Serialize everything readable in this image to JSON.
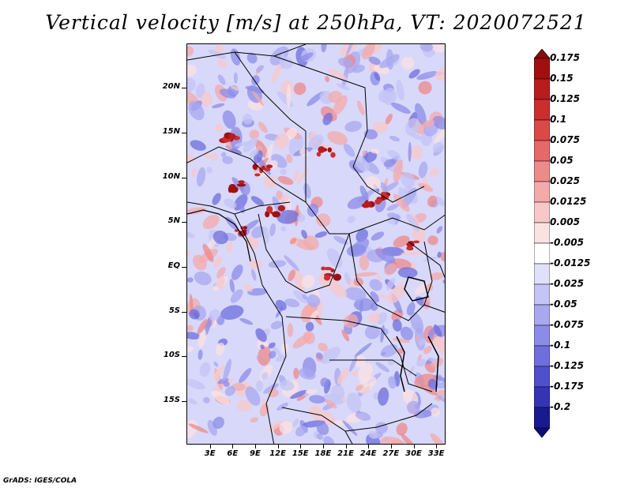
{
  "title": "Vertical velocity [m/s] at 250hPa, VT: 2020072521",
  "credit": "GrADS: IGES/COLA",
  "map": {
    "lat_labels": [
      {
        "text": "20N",
        "lat": 20
      },
      {
        "text": "15N",
        "lat": 15
      },
      {
        "text": "10N",
        "lat": 10
      },
      {
        "text": "5N",
        "lat": 5
      },
      {
        "text": "EQ",
        "lat": 0
      },
      {
        "text": "5S",
        "lat": -5
      },
      {
        "text": "10S",
        "lat": -10
      },
      {
        "text": "15S",
        "lat": -15
      }
    ],
    "lon_labels": [
      {
        "text": "3E",
        "lon": 3
      },
      {
        "text": "6E",
        "lon": 6
      },
      {
        "text": "9E",
        "lon": 9
      },
      {
        "text": "12E",
        "lon": 12
      },
      {
        "text": "15E",
        "lon": 15
      },
      {
        "text": "18E",
        "lon": 18
      },
      {
        "text": "21E",
        "lon": 21
      },
      {
        "text": "24E",
        "lon": 24
      },
      {
        "text": "27E",
        "lon": 27
      },
      {
        "text": "30E",
        "lon": 30
      },
      {
        "text": "33E",
        "lon": 33
      }
    ]
  },
  "colorbar": {
    "levels": [
      {
        "label": "0.175",
        "color": "#a01010"
      },
      {
        "label": "0.15",
        "color": "#b81c1c"
      },
      {
        "label": "0.125",
        "color": "#cc2e2e"
      },
      {
        "label": "0.1",
        "color": "#dc4848"
      },
      {
        "label": "0.075",
        "color": "#e66868"
      },
      {
        "label": "0.05",
        "color": "#ee8a8a"
      },
      {
        "label": "0.025",
        "color": "#f4aaaa"
      },
      {
        "label": "0.0125",
        "color": "#f8c8c8"
      },
      {
        "label": "0.005",
        "color": "#fbe2e2"
      },
      {
        "label": "-0.005",
        "color": "#ffffff"
      },
      {
        "label": "-0.0125",
        "color": "#e0e0fb"
      },
      {
        "label": "-0.025",
        "color": "#c4c4f6"
      },
      {
        "label": "-0.05",
        "color": "#a8a8f0"
      },
      {
        "label": "-0.075",
        "color": "#8c8ce8"
      },
      {
        "label": "-0.1",
        "color": "#6e6ede"
      },
      {
        "label": "-0.125",
        "color": "#5050cc"
      },
      {
        "label": "-0.175",
        "color": "#3434b4"
      },
      {
        "label": "-0.2",
        "color": "#1a1a90"
      }
    ],
    "top_color": "#8a0a0a",
    "bottom_color": "#0e0e78"
  }
}
